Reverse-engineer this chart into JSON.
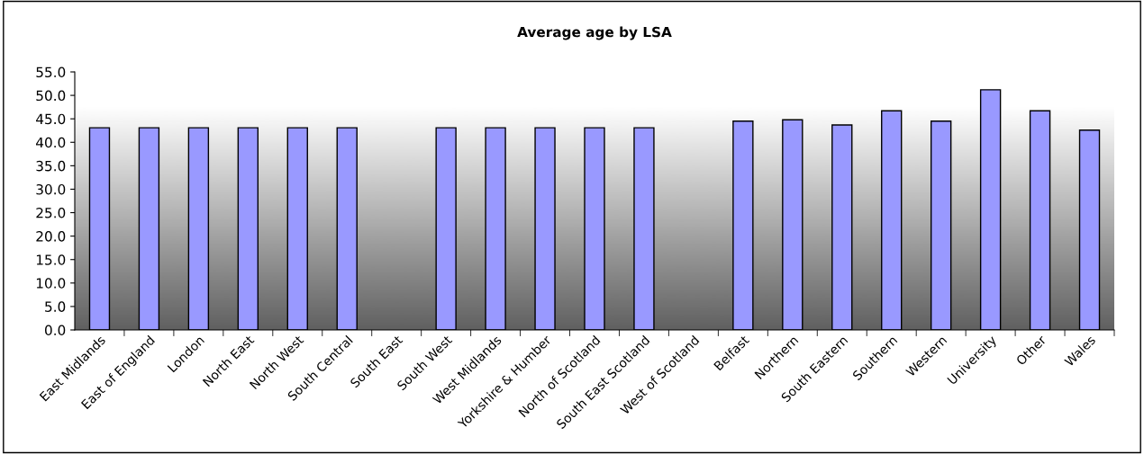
{
  "chart_data": {
    "type": "bar",
    "title": "Average age by LSA",
    "categories": [
      "East Midlands",
      "East of England",
      "London",
      "North East",
      "North West",
      "South Central",
      "South East",
      "South West",
      "West Midlands",
      "Yorkshire & Humber",
      "North of Scotland",
      "South East Scotland",
      "West of Scotland",
      "Belfast",
      "Northern",
      "South Eastern",
      "Southern",
      "Western",
      "University",
      "Other",
      "Wales"
    ],
    "values": [
      43.1,
      43.1,
      43.1,
      43.1,
      43.1,
      43.1,
      null,
      43.1,
      43.1,
      43.1,
      43.1,
      43.1,
      null,
      44.5,
      44.8,
      43.7,
      46.7,
      44.5,
      51.2,
      46.7,
      42.6
    ],
    "color": "#9999ff",
    "ylim": [
      0,
      55
    ],
    "yticks": [
      {
        "value": 0,
        "label": "0.0"
      },
      {
        "value": 5,
        "label": "5.0"
      },
      {
        "value": 10,
        "label": "10.0"
      },
      {
        "value": 15,
        "label": "15.0"
      },
      {
        "value": 20,
        "label": "20.0"
      },
      {
        "value": 25,
        "label": "25.0"
      },
      {
        "value": 30,
        "label": "30.0"
      },
      {
        "value": 35,
        "label": "35.0"
      },
      {
        "value": 40,
        "label": "40.0"
      },
      {
        "value": 45,
        "label": "45.0"
      },
      {
        "value": 50,
        "label": "50.0"
      },
      {
        "value": 55,
        "label": "55.0"
      }
    ],
    "grid": false,
    "legend": false
  }
}
